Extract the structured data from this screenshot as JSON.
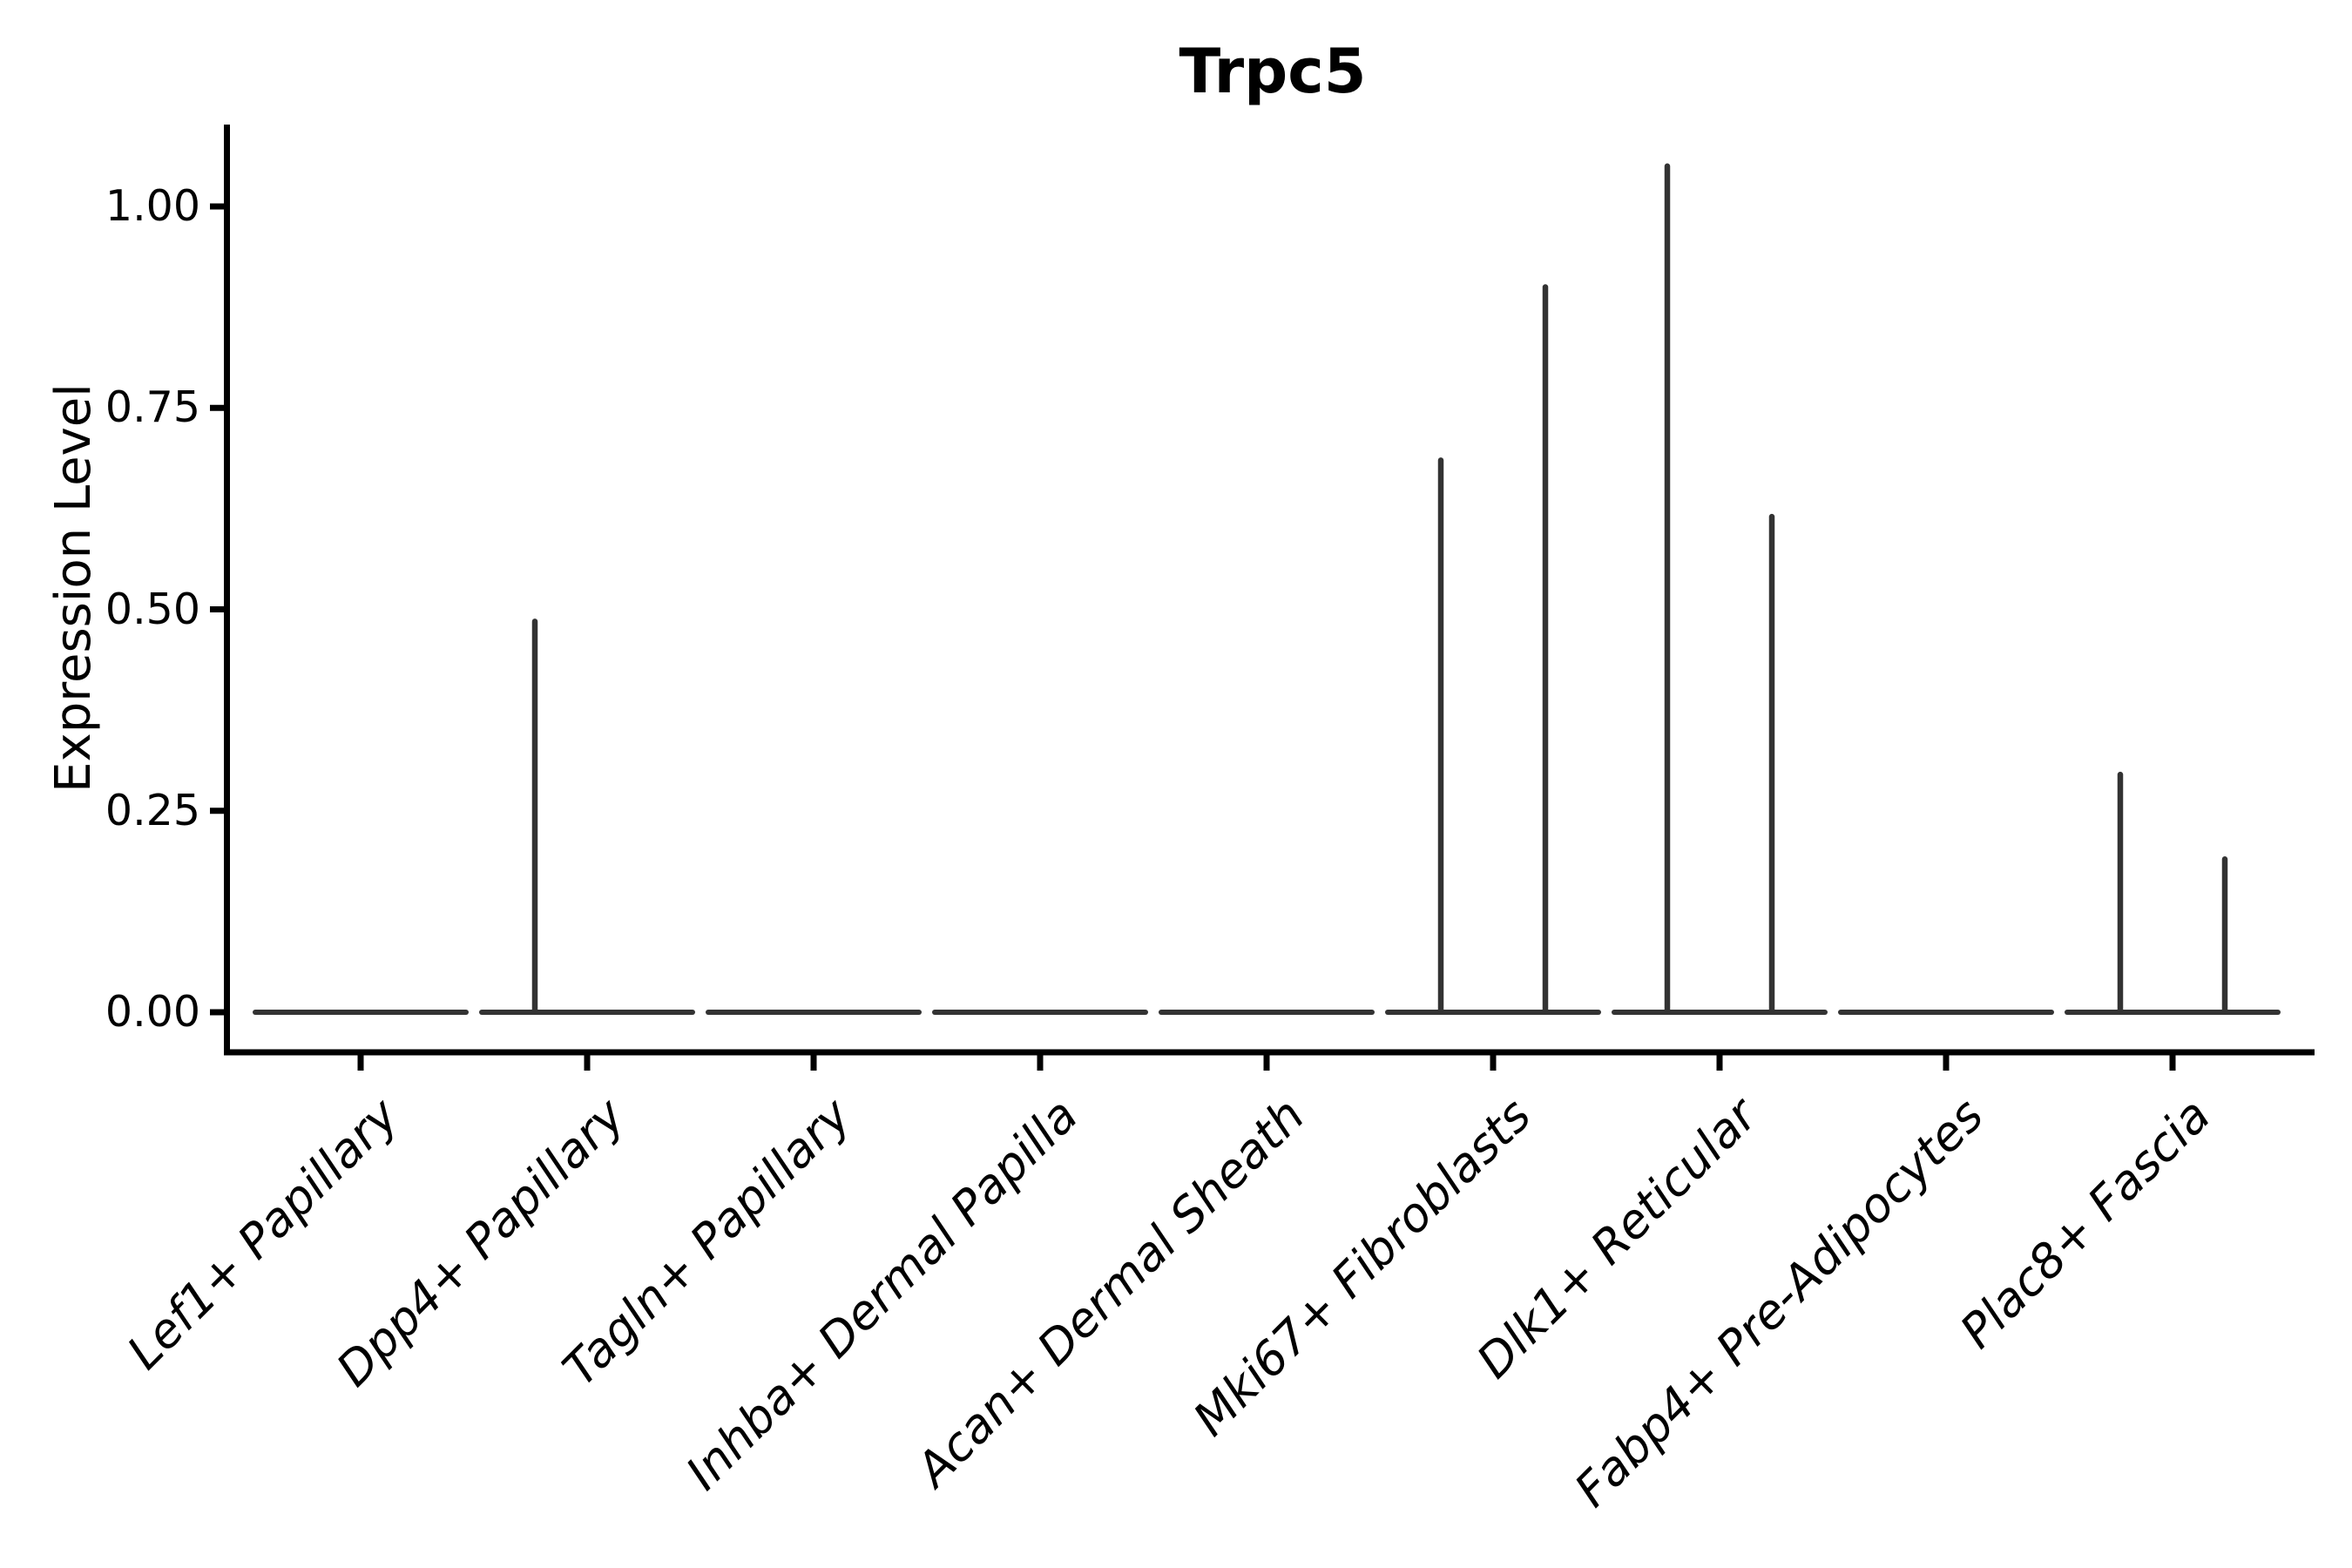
{
  "figure": {
    "title": "Trpc5",
    "background": "#ffffff"
  },
  "chart_data": {
    "type": "violin",
    "title": "Trpc5",
    "xlabel": "",
    "ylabel": "Expression Level",
    "ylim": [
      -0.05,
      1.1
    ],
    "yticks": [
      0.0,
      0.25,
      0.5,
      0.75,
      1.0
    ],
    "ytick_labels": [
      "0.00",
      "0.25",
      "0.50",
      "0.75",
      "1.00"
    ],
    "grid": false,
    "legend": "none",
    "categories": [
      "Lef1+ Papillary",
      "Dpp4+ Papillary",
      "Tagln+ Papillary",
      "Inhba+ Dermal Papilla",
      "Acan+ Dermal Sheath",
      "Mki67+ Fibroblasts",
      "Dlk1+ Reticular",
      "Fabp4+ Pre-Adipocytes",
      "Plac8+ Fascia"
    ],
    "violins": [
      {
        "category": "Lef1+ Papillary",
        "baseline_at_zero": true,
        "peaks": []
      },
      {
        "category": "Dpp4+ Papillary",
        "baseline_at_zero": true,
        "peaks": [
          {
            "position": "left",
            "max_expression": 0.485
          }
        ]
      },
      {
        "category": "Tagln+ Papillary",
        "baseline_at_zero": true,
        "peaks": []
      },
      {
        "category": "Inhba+ Dermal Papilla",
        "baseline_at_zero": true,
        "peaks": []
      },
      {
        "category": "Acan+ Dermal Sheath",
        "baseline_at_zero": true,
        "peaks": []
      },
      {
        "category": "Mki67+ Fibroblasts",
        "baseline_at_zero": true,
        "peaks": [
          {
            "position": "left",
            "max_expression": 0.685
          },
          {
            "position": "right",
            "max_expression": 0.9
          }
        ]
      },
      {
        "category": "Dlk1+ Reticular",
        "baseline_at_zero": true,
        "peaks": [
          {
            "position": "left",
            "max_expression": 1.05
          },
          {
            "position": "right",
            "max_expression": 0.615
          }
        ]
      },
      {
        "category": "Fabp4+ Pre-Adipocytes",
        "baseline_at_zero": true,
        "peaks": []
      },
      {
        "category": "Plac8+ Fascia",
        "baseline_at_zero": true,
        "peaks": [
          {
            "position": "left",
            "max_expression": 0.295
          },
          {
            "position": "right",
            "max_expression": 0.19
          }
        ]
      }
    ]
  },
  "style": {
    "violin_color": "#333333",
    "axis_color": "#000000",
    "text_color": "#000000",
    "background": "#ffffff"
  }
}
